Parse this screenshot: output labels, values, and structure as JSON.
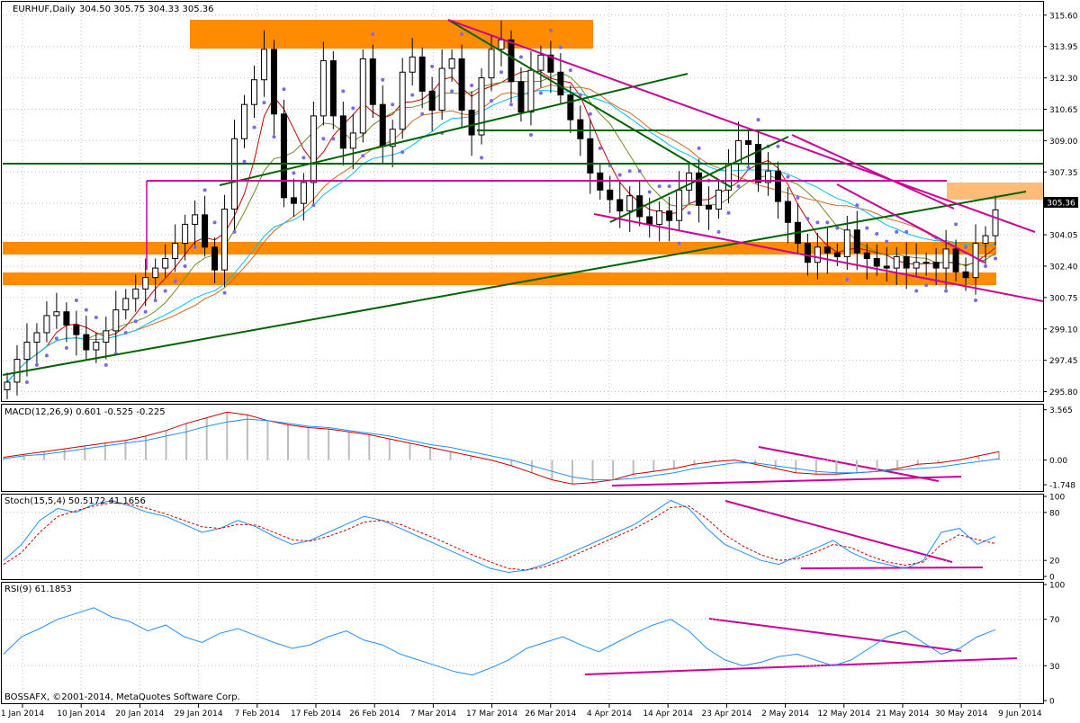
{
  "header": {
    "symbol_label": "EURHUF,Daily",
    "ohlc_label": "304.50 305.75 304.33 305.36"
  },
  "footer": {
    "copyright": "BOSSAFX, ©2001-2014, MetaQuotes Software Corp."
  },
  "colors": {
    "bull": "#ffffff",
    "bear": "#000000",
    "grid": "#c0c0c0",
    "orange_zone": "#ff8c00",
    "magenta": "#cc0099",
    "green": "#006400",
    "sma_fast": "#cc0000",
    "sma_mid": "#6b8e23",
    "sma_slow": "#d2691e",
    "sma_long": "#00bfff",
    "parabolic": "#7b68ee"
  },
  "chart_data": [
    {
      "type": "candlestick",
      "panel": "price",
      "title": "EURHUF,Daily",
      "ohlc": {
        "open": 304.5,
        "high": 305.75,
        "low": 304.33,
        "close": 305.36
      },
      "last_price": "305.36",
      "ylim": [
        295.4,
        316.3
      ],
      "y_ticks": [
        "315.60",
        "313.95",
        "312.30",
        "310.65",
        "309.00",
        "307.35",
        "305.70",
        "304.05",
        "302.40",
        "300.75",
        "299.10",
        "297.45",
        "295.80"
      ],
      "x_tick_labels": [
        "1 Jan 2014",
        "10 Jan 2014",
        "20 Jan 2014",
        "29 Jan 2014",
        "7 Feb 2014",
        "17 Feb 2014",
        "26 Feb 2014",
        "7 Mar 2014",
        "17 Mar 2014",
        "26 Mar 2014",
        "4 Apr 2014",
        "14 Apr 2014",
        "23 Apr 2014",
        "2 May 2014",
        "12 May 2014",
        "21 May 2014",
        "30 May 2014",
        "9 Jun 2014"
      ],
      "closes": [
        296.3,
        297.5,
        298.4,
        298.9,
        299.8,
        300.0,
        299.3,
        298.8,
        298.0,
        298.4,
        299.0,
        300.1,
        300.7,
        301.2,
        301.8,
        302.3,
        302.8,
        303.6,
        304.6,
        305.1,
        303.4,
        302.2,
        305.4,
        309.1,
        310.9,
        312.2,
        313.8,
        310.4,
        306.0,
        305.7,
        306.8,
        310.3,
        313.2,
        310.3,
        308.6,
        309.4,
        313.3,
        310.9,
        308.7,
        309.6,
        312.6,
        313.4,
        311.6,
        310.6,
        312.8,
        313.3,
        310.6,
        309.3,
        312.3,
        313.8,
        314.3,
        312.1,
        310.5,
        312.7,
        313.5,
        312.6,
        311.4,
        310.1,
        309.1,
        307.3,
        306.4,
        305.9,
        305.3,
        306.1,
        305.0,
        304.6,
        305.3,
        304.8,
        306.4,
        307.3,
        305.6,
        305.4,
        306.4,
        307.8,
        309.0,
        308.8,
        306.8,
        307.4,
        305.8,
        304.7,
        303.6,
        302.6,
        303.4,
        303.1,
        302.9,
        304.3,
        303.1,
        302.8,
        302.4,
        302.3,
        302.9,
        302.3,
        302.6,
        302.6,
        302.3,
        303.3,
        302.1,
        301.8,
        303.6,
        304.0,
        305.36
      ],
      "overlays": [
        {
          "kind": "sma_fast"
        },
        {
          "kind": "sma_mid"
        },
        {
          "kind": "sma_slow"
        },
        {
          "kind": "sma_long"
        },
        {
          "kind": "parabolic_sar"
        }
      ]
    },
    {
      "type": "line",
      "panel": "macd",
      "title": "MACD(12,26,9) 0.601 -0.525 -0.225",
      "ylim": [
        -2.0,
        3.8
      ],
      "y_ticks": [
        "3.565",
        "0.00",
        "-1.748"
      ],
      "values": [
        0.2,
        0.4,
        0.6,
        0.8,
        1.0,
        1.2,
        1.4,
        1.7,
        2.1,
        2.6,
        3.0,
        3.4,
        3.2,
        2.8,
        2.5,
        2.3,
        2.2,
        2.0,
        1.8,
        1.5,
        1.2,
        0.9,
        0.6,
        0.3,
        0.0,
        -0.4,
        -0.9,
        -1.4,
        -1.7,
        -1.6,
        -1.4,
        -1.0,
        -0.8,
        -0.6,
        -0.3,
        -0.1,
        0.0,
        -0.3,
        -0.6,
        -0.9,
        -1.0,
        -1.0,
        -0.9,
        -0.8,
        -0.6,
        -0.3,
        -0.2,
        0.0,
        0.3,
        0.6
      ],
      "signal": [
        0.1,
        0.3,
        0.4,
        0.6,
        0.8,
        1.0,
        1.2,
        1.4,
        1.7,
        2.0,
        2.4,
        2.7,
        2.9,
        2.8,
        2.6,
        2.4,
        2.3,
        2.1,
        1.9,
        1.7,
        1.4,
        1.1,
        0.9,
        0.6,
        0.3,
        0.0,
        -0.4,
        -0.8,
        -1.2,
        -1.4,
        -1.4,
        -1.3,
        -1.1,
        -0.9,
        -0.6,
        -0.4,
        -0.2,
        -0.2,
        -0.4,
        -0.6,
        -0.8,
        -0.9,
        -0.9,
        -0.8,
        -0.7,
        -0.6,
        -0.5,
        -0.3,
        -0.1,
        0.1
      ]
    },
    {
      "type": "line",
      "panel": "stoch",
      "title": "Stoch(15,5,4) 50.5172 41.1656",
      "ylim": [
        0,
        100
      ],
      "y_ticks": [
        "100",
        "80",
        "20",
        "0"
      ],
      "main": [
        20,
        40,
        70,
        85,
        80,
        90,
        95,
        88,
        80,
        75,
        65,
        55,
        60,
        70,
        62,
        50,
        40,
        45,
        55,
        65,
        75,
        70,
        60,
        50,
        40,
        30,
        20,
        10,
        5,
        8,
        15,
        25,
        35,
        45,
        55,
        65,
        80,
        95,
        85,
        60,
        40,
        30,
        20,
        15,
        25,
        35,
        45,
        30,
        20,
        15,
        10,
        20,
        55,
        60,
        40,
        50
      ],
      "signal": [
        15,
        30,
        55,
        75,
        82,
        88,
        92,
        90,
        85,
        78,
        70,
        62,
        60,
        65,
        64,
        55,
        46,
        44,
        50,
        58,
        68,
        70,
        65,
        56,
        47,
        37,
        27,
        18,
        10,
        8,
        12,
        20,
        30,
        40,
        50,
        60,
        72,
        86,
        88,
        72,
        52,
        38,
        27,
        20,
        22,
        30,
        40,
        36,
        26,
        18,
        14,
        18,
        40,
        52,
        46,
        41
      ]
    },
    {
      "type": "line",
      "panel": "rsi",
      "title": "RSI(9) 61.1853",
      "ylim": [
        0,
        100
      ],
      "y_ticks": [
        "100",
        "70",
        "30",
        "0"
      ],
      "values": [
        40,
        55,
        62,
        70,
        75,
        80,
        72,
        68,
        60,
        65,
        55,
        50,
        58,
        62,
        56,
        50,
        45,
        48,
        55,
        60,
        52,
        48,
        40,
        35,
        30,
        25,
        22,
        28,
        35,
        45,
        50,
        55,
        48,
        42,
        50,
        58,
        65,
        70,
        60,
        45,
        35,
        30,
        33,
        38,
        40,
        35,
        30,
        35,
        45,
        55,
        60,
        50,
        40,
        45,
        55,
        61
      ]
    }
  ],
  "panels": {
    "price": {
      "top": 0,
      "bottom": 446
    },
    "macd": {
      "top": 449,
      "bottom": 546
    },
    "stoch": {
      "top": 549,
      "bottom": 644
    },
    "rsi": {
      "top": 647,
      "bottom": 782
    }
  }
}
